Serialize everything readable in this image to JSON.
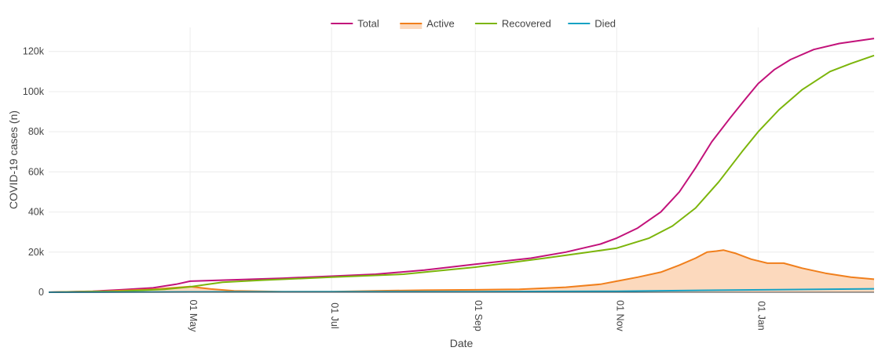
{
  "chart_data": {
    "type": "line",
    "xlabel": "Date",
    "ylabel": "COVID-19 cases (n)",
    "x_range": [
      "2020-03-01",
      "2021-02-20"
    ],
    "ylim": [
      0,
      132000
    ],
    "yticks": [
      0,
      20000,
      40000,
      60000,
      80000,
      100000,
      120000
    ],
    "ytick_labels": [
      "0",
      "20k",
      "40k",
      "60k",
      "80k",
      "100k",
      "120k"
    ],
    "xticks": [
      "2020-05-01",
      "2020-07-01",
      "2020-09-01",
      "2020-11-01",
      "2021-01-01"
    ],
    "xtick_labels": [
      "01 May",
      "01 Jul",
      "01 Sep",
      "01 Nov",
      "01 Jan"
    ],
    "grid": true,
    "legend": "top-center",
    "series": [
      {
        "name": "Total",
        "color": "#c2127a",
        "fill": false,
        "points": [
          [
            "2020-03-01",
            0
          ],
          [
            "2020-03-20",
            500
          ],
          [
            "2020-04-01",
            1200
          ],
          [
            "2020-04-15",
            2200
          ],
          [
            "2020-04-25",
            4000
          ],
          [
            "2020-05-01",
            5500
          ],
          [
            "2020-05-20",
            6200
          ],
          [
            "2020-06-10",
            7000
          ],
          [
            "2020-07-01",
            8000
          ],
          [
            "2020-07-20",
            9000
          ],
          [
            "2020-08-10",
            11000
          ],
          [
            "2020-09-01",
            14000
          ],
          [
            "2020-09-25",
            17000
          ],
          [
            "2020-10-10",
            20000
          ],
          [
            "2020-10-25",
            24000
          ],
          [
            "2020-11-01",
            27000
          ],
          [
            "2020-11-10",
            32000
          ],
          [
            "2020-11-20",
            40000
          ],
          [
            "2020-11-28",
            50000
          ],
          [
            "2020-12-05",
            62000
          ],
          [
            "2020-12-12",
            75000
          ],
          [
            "2020-12-20",
            87000
          ],
          [
            "2020-12-27",
            97000
          ],
          [
            "2021-01-01",
            104000
          ],
          [
            "2021-01-08",
            111000
          ],
          [
            "2021-01-15",
            116000
          ],
          [
            "2021-01-25",
            121000
          ],
          [
            "2021-02-05",
            124000
          ],
          [
            "2021-02-20",
            126500
          ]
        ]
      },
      {
        "name": "Active",
        "color": "#f07f1c",
        "fill": true,
        "fill_color": "#fcd9bd",
        "points": [
          [
            "2020-03-01",
            0
          ],
          [
            "2020-03-25",
            500
          ],
          [
            "2020-04-15",
            1500
          ],
          [
            "2020-05-01",
            2800
          ],
          [
            "2020-05-10",
            1600
          ],
          [
            "2020-05-20",
            700
          ],
          [
            "2020-06-10",
            300
          ],
          [
            "2020-07-01",
            300
          ],
          [
            "2020-07-20",
            700
          ],
          [
            "2020-08-10",
            1000
          ],
          [
            "2020-09-01",
            1200
          ],
          [
            "2020-09-20",
            1500
          ],
          [
            "2020-10-10",
            2500
          ],
          [
            "2020-10-25",
            4000
          ],
          [
            "2020-11-01",
            5500
          ],
          [
            "2020-11-10",
            7500
          ],
          [
            "2020-11-20",
            10000
          ],
          [
            "2020-11-28",
            13500
          ],
          [
            "2020-12-05",
            17000
          ],
          [
            "2020-12-10",
            20000
          ],
          [
            "2020-12-14",
            20500
          ],
          [
            "2020-12-17",
            21000
          ],
          [
            "2020-12-22",
            19500
          ],
          [
            "2020-12-29",
            16500
          ],
          [
            "2021-01-05",
            14500
          ],
          [
            "2021-01-12",
            14500
          ],
          [
            "2021-01-20",
            12000
          ],
          [
            "2021-01-30",
            9500
          ],
          [
            "2021-02-10",
            7500
          ],
          [
            "2021-02-20",
            6500
          ]
        ]
      },
      {
        "name": "Recovered",
        "color": "#7cb50b",
        "fill": false,
        "points": [
          [
            "2020-03-01",
            0
          ],
          [
            "2020-04-01",
            500
          ],
          [
            "2020-04-20",
            1500
          ],
          [
            "2020-05-01",
            2700
          ],
          [
            "2020-05-15",
            5000
          ],
          [
            "2020-06-01",
            6000
          ],
          [
            "2020-07-01",
            7500
          ],
          [
            "2020-08-01",
            9000
          ],
          [
            "2020-09-01",
            12500
          ],
          [
            "2020-10-01",
            17000
          ],
          [
            "2020-10-20",
            20000
          ],
          [
            "2020-11-01",
            22000
          ],
          [
            "2020-11-15",
            27000
          ],
          [
            "2020-11-25",
            33000
          ],
          [
            "2020-12-05",
            42000
          ],
          [
            "2020-12-15",
            55000
          ],
          [
            "2020-12-25",
            70000
          ],
          [
            "2021-01-01",
            80000
          ],
          [
            "2021-01-10",
            91000
          ],
          [
            "2021-01-20",
            101000
          ],
          [
            "2021-02-01",
            110000
          ],
          [
            "2021-02-10",
            114000
          ],
          [
            "2021-02-20",
            118000
          ]
        ]
      },
      {
        "name": "Died",
        "color": "#17a2c4",
        "fill": false,
        "points": [
          [
            "2020-03-01",
            0
          ],
          [
            "2020-05-01",
            200
          ],
          [
            "2020-09-01",
            300
          ],
          [
            "2020-11-01",
            500
          ],
          [
            "2020-12-15",
            1000
          ],
          [
            "2021-02-20",
            1700
          ]
        ]
      }
    ]
  }
}
